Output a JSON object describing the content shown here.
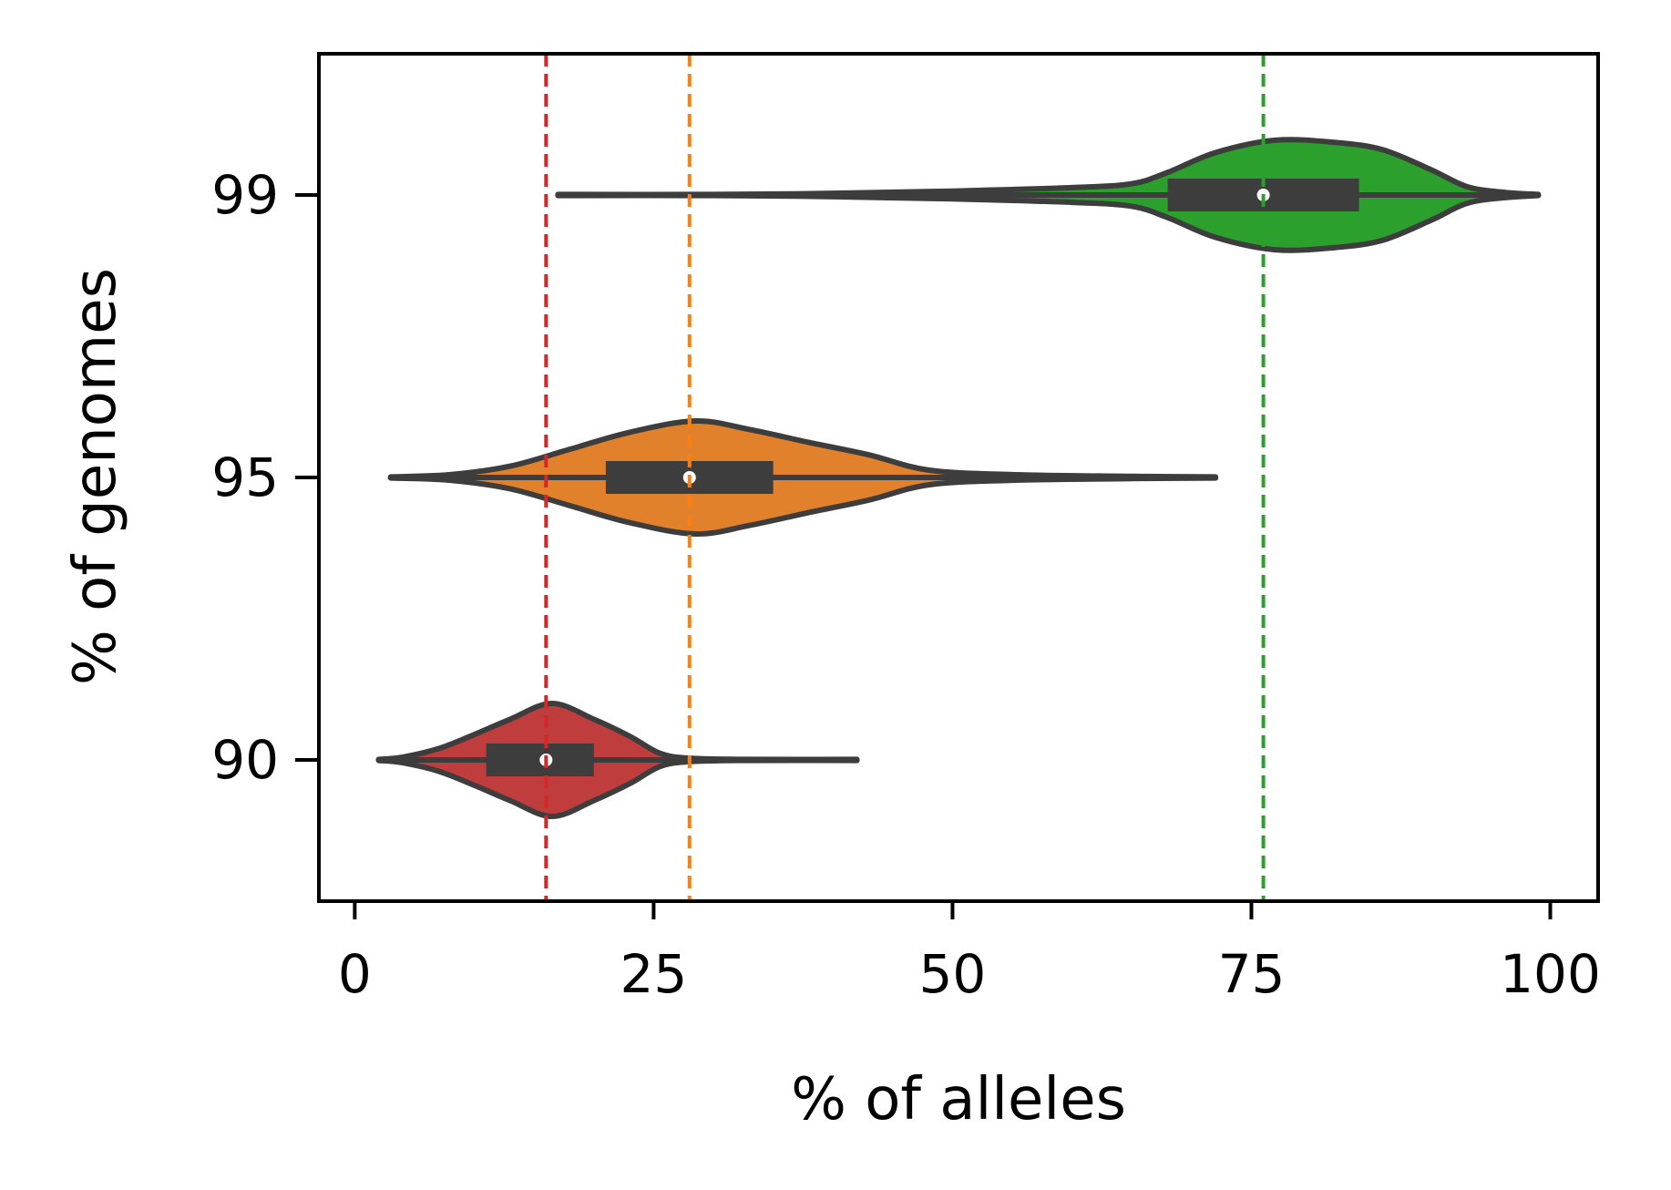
{
  "chart_data": {
    "type": "violin",
    "orientation": "horizontal",
    "xlabel": "% of alleles",
    "ylabel": "% of genomes",
    "xlim": [
      -3,
      104
    ],
    "x_ticks": [
      "0",
      "25",
      "50",
      "75",
      "100"
    ],
    "y_ticks": [
      "90",
      "95",
      "99"
    ],
    "grid": false,
    "series": [
      {
        "category": "99",
        "color": "#2ca02c",
        "median": 76,
        "q1": 68,
        "q3": 84,
        "min": 17,
        "max": 99,
        "density": [
          [
            17,
            0.01
          ],
          [
            30,
            0.01
          ],
          [
            40,
            0.03
          ],
          [
            50,
            0.07
          ],
          [
            60,
            0.13
          ],
          [
            65,
            0.2
          ],
          [
            68,
            0.4
          ],
          [
            72,
            0.75
          ],
          [
            77,
            0.97
          ],
          [
            82,
            0.93
          ],
          [
            86,
            0.8
          ],
          [
            90,
            0.45
          ],
          [
            93,
            0.15
          ],
          [
            96,
            0.05
          ],
          [
            99,
            0.01
          ]
        ]
      },
      {
        "category": "95",
        "color": "#e1812c",
        "median": 28,
        "q1": 21,
        "q3": 35,
        "min": 3,
        "max": 72,
        "density": [
          [
            3,
            0.01
          ],
          [
            8,
            0.05
          ],
          [
            13,
            0.2
          ],
          [
            18,
            0.5
          ],
          [
            23,
            0.8
          ],
          [
            28.5,
            1.0
          ],
          [
            33,
            0.85
          ],
          [
            38,
            0.62
          ],
          [
            43,
            0.4
          ],
          [
            48,
            0.13
          ],
          [
            55,
            0.05
          ],
          [
            65,
            0.02
          ],
          [
            72,
            0.01
          ]
        ]
      },
      {
        "category": "90",
        "color": "#c03d3e",
        "median": 16,
        "q1": 11,
        "q3": 20,
        "min": 2,
        "max": 42,
        "density": [
          [
            2,
            0.01
          ],
          [
            4,
            0.05
          ],
          [
            7,
            0.2
          ],
          [
            10,
            0.45
          ],
          [
            13,
            0.72
          ],
          [
            16.5,
            1.0
          ],
          [
            20,
            0.72
          ],
          [
            23,
            0.42
          ],
          [
            25.5,
            0.12
          ],
          [
            28,
            0.03
          ],
          [
            33,
            0.01
          ],
          [
            42,
            0.01
          ]
        ]
      }
    ],
    "reference_lines": [
      {
        "x": 16,
        "color": "#d62728"
      },
      {
        "x": 28,
        "color": "#ff7f0e"
      },
      {
        "x": 76,
        "color": "#2ca02c"
      }
    ]
  }
}
